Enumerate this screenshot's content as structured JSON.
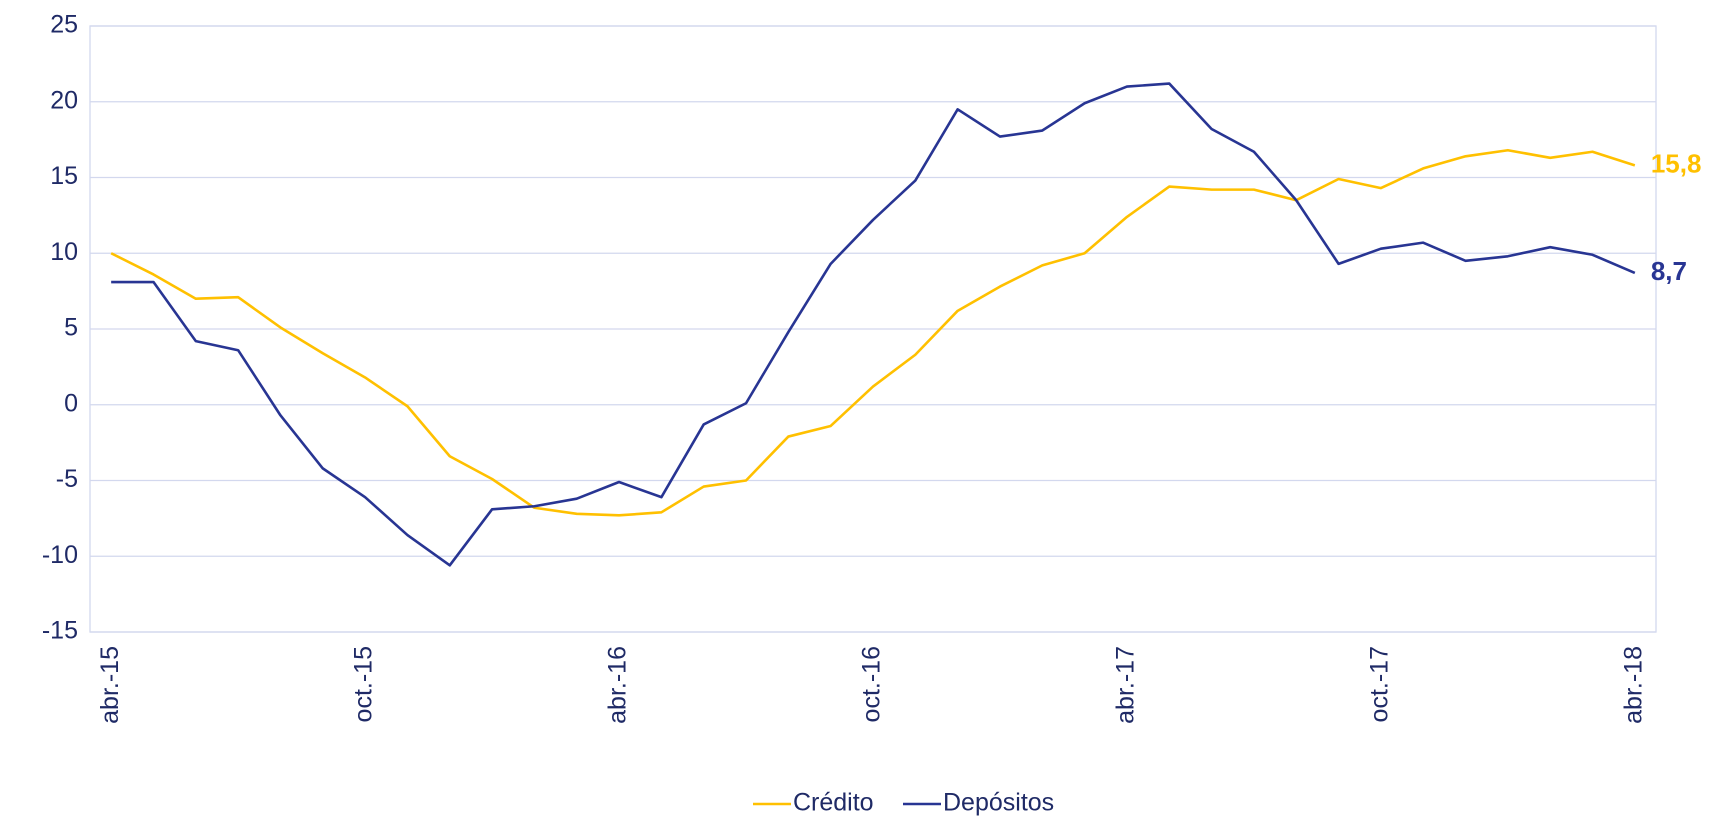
{
  "chart_data": {
    "type": "line",
    "categories": [
      "abr.-15",
      null,
      null,
      null,
      null,
      null,
      "oct.-15",
      null,
      null,
      null,
      null,
      null,
      "abr.-16",
      null,
      null,
      null,
      null,
      null,
      "oct.-16",
      null,
      null,
      null,
      null,
      null,
      "abr.-17",
      null,
      null,
      null,
      null,
      null,
      "oct.-17",
      null,
      null,
      null,
      null,
      null,
      "abr.-18"
    ],
    "ylim": [
      -15,
      25
    ],
    "yticks": [
      -15,
      -10,
      -5,
      0,
      5,
      10,
      15,
      20,
      25
    ],
    "grid": true,
    "legend": "bottom",
    "series": [
      {
        "name": "Crédito",
        "color": "#ffc000",
        "values": [
          10.0,
          8.6,
          7.0,
          7.1,
          5.1,
          3.4,
          1.8,
          -0.1,
          -3.4,
          -4.9,
          -6.8,
          -7.2,
          -7.3,
          -7.1,
          -5.4,
          -5.0,
          -2.1,
          -1.4,
          1.2,
          3.3,
          6.2,
          7.8,
          9.2,
          10.0,
          12.4,
          14.4,
          14.2,
          14.2,
          13.5,
          14.9,
          14.3,
          15.6,
          16.4,
          16.8,
          16.3,
          16.7,
          15.8
        ],
        "value_labels": [
          null,
          null,
          null,
          null,
          null,
          null,
          null,
          null,
          null,
          null,
          null,
          null,
          null,
          null,
          null,
          null,
          null,
          null,
          null,
          null,
          null,
          null,
          null,
          null,
          null,
          null,
          null,
          null,
          null,
          null,
          null,
          null,
          null,
          null,
          null,
          null,
          "15,8"
        ]
      },
      {
        "name": "Depósitos",
        "color": "#283593",
        "values": [
          8.1,
          8.1,
          4.2,
          3.6,
          -0.7,
          -4.2,
          -6.1,
          -8.6,
          -10.6,
          -6.9,
          -6.7,
          -6.2,
          -5.1,
          -6.1,
          -1.3,
          0.1,
          4.8,
          9.3,
          12.2,
          14.8,
          19.5,
          17.7,
          18.1,
          19.9,
          21.0,
          21.2,
          18.2,
          16.7,
          13.5,
          9.3,
          10.3,
          10.7,
          9.5,
          9.8,
          10.4,
          9.9,
          8.7
        ],
        "value_labels": [
          null,
          null,
          null,
          null,
          null,
          null,
          null,
          null,
          null,
          null,
          null,
          null,
          null,
          null,
          null,
          null,
          null,
          null,
          null,
          null,
          null,
          null,
          null,
          null,
          null,
          null,
          null,
          null,
          null,
          null,
          null,
          null,
          null,
          null,
          null,
          null,
          "8,7"
        ]
      }
    ]
  }
}
